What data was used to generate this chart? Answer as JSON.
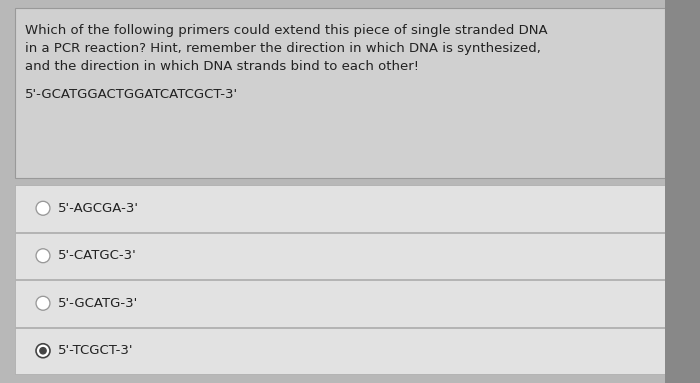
{
  "question_text_lines": [
    "Which of the following primers could extend this piece of single stranded DNA",
    "in a PCR reaction? Hint, remember the direction in which DNA is synthesized,",
    "and the direction in which DNA strands bind to each other!"
  ],
  "sequence": "5'-GCATGGACTGGATCATCGCT-3'",
  "options": [
    {
      "label": "5'-AGCGA-3'",
      "selected": false
    },
    {
      "label": "5'-CATGC-3'",
      "selected": false
    },
    {
      "label": "5'-GCATG-3'",
      "selected": false
    },
    {
      "label": "5'-TCGCT-3'",
      "selected": true
    }
  ],
  "bg_color_outer": "#b8b8b8",
  "bg_color_question": "#d0d0d0",
  "bg_color_option": "#e2e2e2",
  "text_color": "#222222",
  "font_size_question": 9.5,
  "font_size_sequence": 9.5,
  "font_size_option": 9.5,
  "radio_color_empty": "#999999",
  "radio_color_filled": "#444444",
  "fig_width": 7.0,
  "fig_height": 3.83
}
